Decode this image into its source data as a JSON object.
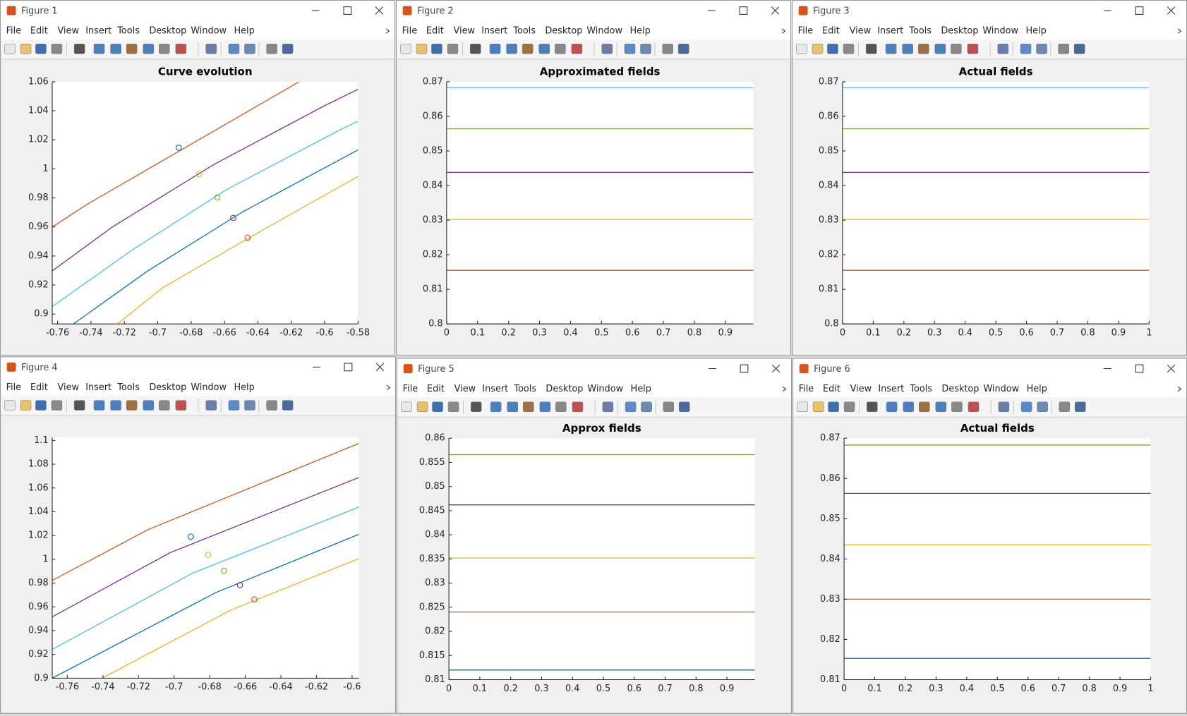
{
  "windows": [
    {
      "title": "Figure 1"
    },
    {
      "title": "Figure 2"
    },
    {
      "title": "Figure 3"
    },
    {
      "title": "Figure 4"
    },
    {
      "title": "Figure 5"
    },
    {
      "title": "Figure 6"
    }
  ],
  "menu": [
    "File",
    "Edit",
    "View",
    "Insert",
    "Tools",
    "Desktop",
    "Window",
    "Help"
  ],
  "chart_data": [
    {
      "type": "line",
      "title": "Curve evolution",
      "xlim": [
        -0.7632,
        -0.58
      ],
      "ylim": [
        0.8932,
        1.06
      ],
      "xticks": [
        -0.76,
        -0.74,
        -0.72,
        -0.7,
        -0.68,
        -0.66,
        -0.64,
        -0.62,
        -0.6,
        -0.58
      ],
      "yticks": [
        0.9,
        0.92,
        0.94,
        0.96,
        0.98,
        1,
        1.02,
        1.04,
        1.06
      ],
      "series": [
        {
          "color": "#D95319",
          "x": [
            -0.7632,
            -0.7423,
            -0.6153
          ],
          "values": [
            0.9599,
            0.9756,
            1.06
          ]
        },
        {
          "color": "#7E2F8E",
          "x": [
            -0.7632,
            -0.7273,
            -0.6661,
            -0.6004,
            -0.58
          ],
          "values": [
            0.9297,
            0.9599,
            1.0032,
            1.0433,
            1.0548
          ]
        },
        {
          "color": "#4DBEEE",
          "x": [
            -0.7632,
            -0.7151,
            -0.6584,
            -0.5913,
            -0.58
          ],
          "values": [
            0.9052,
            0.9443,
            0.986,
            1.0266,
            1.0329
          ]
        },
        {
          "color": "#0072BD",
          "x": [
            -0.7505,
            -0.706,
            -0.6493,
            -0.58
          ],
          "values": [
            0.8932,
            0.9297,
            0.9703,
            1.0131
          ]
        },
        {
          "color": "#EDB120",
          "x": [
            -0.7242,
            -0.697,
            -0.638,
            -0.58
          ],
          "values": [
            0.8932,
            0.9182,
            0.9573,
            0.9948
          ]
        }
      ],
      "points": {
        "x": [
          -0.6874,
          -0.6752,
          -0.6643,
          -0.6548,
          -0.6462
        ],
        "values": [
          1.0146,
          0.9964,
          0.9803,
          0.9662,
          0.9526
        ],
        "colors": [
          "#0072BD",
          "#EDB120",
          "#77AC30",
          "#7E2F8E",
          "#D95319"
        ]
      }
    },
    {
      "type": "line",
      "title": "Approximated fields",
      "xlim": [
        0,
        0.99
      ],
      "ylim": [
        0.8,
        0.87
      ],
      "xticks": [
        0,
        0.1,
        0.2,
        0.3,
        0.4,
        0.5,
        0.6,
        0.7,
        0.8,
        0.9
      ],
      "yticks": [
        0.8,
        0.81,
        0.82,
        0.83,
        0.84,
        0.85,
        0.86,
        0.87
      ],
      "series": [
        {
          "color": "#4DBEEE",
          "x": [
            0,
            0.99
          ],
          "values": [
            0.8683,
            0.8683
          ]
        },
        {
          "color": "#77AC30",
          "x": [
            0,
            0.99
          ],
          "values": [
            0.8564,
            0.8564
          ]
        },
        {
          "color": "#7E2F8E",
          "x": [
            0,
            0.99
          ],
          "values": [
            0.8438,
            0.8438
          ]
        },
        {
          "color": "#EDB120",
          "x": [
            0,
            0.99
          ],
          "values": [
            0.8302,
            0.8302
          ]
        },
        {
          "color": "#D95319",
          "x": [
            0,
            0.99
          ],
          "values": [
            0.8155,
            0.8155
          ]
        },
        {
          "color": "#0072BD",
          "x": [
            0,
            0.99
          ],
          "values": [
            0.8,
            0.8
          ]
        }
      ]
    },
    {
      "type": "line",
      "title": "Actual fields",
      "xlim": [
        0,
        1
      ],
      "ylim": [
        0.8,
        0.87
      ],
      "xticks": [
        0,
        0.1,
        0.2,
        0.3,
        0.4,
        0.5,
        0.6,
        0.7,
        0.8,
        0.9,
        1
      ],
      "yticks": [
        0.8,
        0.81,
        0.82,
        0.83,
        0.84,
        0.85,
        0.86,
        0.87
      ],
      "series": [
        {
          "color": "#4DBEEE",
          "x": [
            0,
            1
          ],
          "values": [
            0.8683,
            0.8683
          ]
        },
        {
          "color": "#77AC30",
          "x": [
            0,
            1
          ],
          "values": [
            0.8564,
            0.8564
          ]
        },
        {
          "color": "#7E2F8E",
          "x": [
            0,
            1
          ],
          "values": [
            0.8438,
            0.8438
          ]
        },
        {
          "color": "#EDB120",
          "x": [
            0,
            1
          ],
          "values": [
            0.8302,
            0.8302
          ]
        },
        {
          "color": "#D95319",
          "x": [
            0,
            1
          ],
          "values": [
            0.8155,
            0.8155
          ]
        },
        {
          "color": "#0072BD",
          "x": [
            0,
            1
          ],
          "values": [
            0.8,
            0.8
          ]
        }
      ]
    },
    {
      "type": "line",
      "xlim": [
        -0.7685,
        -0.5962
      ],
      "ylim": [
        0.9,
        1.1025
      ],
      "xticks": [
        -0.76,
        -0.74,
        -0.72,
        -0.7,
        -0.68,
        -0.66,
        -0.64,
        -0.62,
        -0.6
      ],
      "yticks": [
        0.9,
        0.92,
        0.94,
        0.96,
        0.98,
        1,
        1.02,
        1.04,
        1.06,
        1.08,
        1.1
      ],
      "series": [
        {
          "color": "#D95319",
          "x": [
            -0.7685,
            -0.7149,
            -0.5962
          ],
          "values": [
            0.9822,
            1.0248,
            1.0975
          ]
        },
        {
          "color": "#7E2F8E",
          "x": [
            -0.7685,
            -0.7021,
            -0.5962
          ],
          "values": [
            0.9516,
            1.0057,
            1.0688
          ]
        },
        {
          "color": "#4DBEEE",
          "x": [
            -0.7685,
            -0.6894,
            -0.5962
          ],
          "values": [
            0.9242,
            0.9885,
            1.0439
          ]
        },
        {
          "color": "#0072BD",
          "x": [
            -0.7685,
            -0.6766,
            -0.5962
          ],
          "values": [
            0.9,
            0.972,
            1.021
          ]
        },
        {
          "color": "#EDB120",
          "x": [
            -0.7404,
            -0.6681,
            -0.5962
          ],
          "values": [
            0.9,
            0.9573,
            1.0006
          ]
        }
      ],
      "points": {
        "x": [
          -0.6906,
          -0.6809,
          -0.6719,
          -0.663,
          -0.6549
        ],
        "values": [
          1.0191,
          1.0038,
          0.9904,
          0.9783,
          0.9662
        ],
        "colors": [
          "#0072BD",
          "#EDB120",
          "#77AC30",
          "#7E2F8E",
          "#D95319"
        ]
      }
    },
    {
      "type": "line",
      "title": "Approx fields",
      "xlim": [
        0,
        0.99
      ],
      "ylim": [
        0.81,
        0.86
      ],
      "xticks": [
        0,
        0.1,
        0.2,
        0.3,
        0.4,
        0.5,
        0.6,
        0.7,
        0.8,
        0.9
      ],
      "yticks": [
        0.81,
        0.815,
        0.82,
        0.825,
        0.83,
        0.835,
        0.84,
        0.845,
        0.85,
        0.855,
        0.86
      ],
      "series": [
        {
          "color": "#77AC30",
          "x": [
            0,
            0.99
          ],
          "values": [
            0.8566,
            0.8566
          ]
        },
        {
          "color": "#7E2F8E",
          "x": [
            0,
            0.99
          ],
          "values": [
            0.8462,
            0.8462
          ]
        },
        {
          "color": "#EDB120",
          "x": [
            0,
            0.99
          ],
          "values": [
            0.8352,
            0.8352
          ]
        },
        {
          "color": "#D95319",
          "x": [
            0,
            0.99
          ],
          "values": [
            0.824,
            0.824
          ]
        },
        {
          "color": "#0072BD",
          "x": [
            0,
            0.99
          ],
          "values": [
            0.812,
            0.812
          ]
        }
      ]
    },
    {
      "type": "line",
      "title": "Actual fields",
      "xlim": [
        0,
        1
      ],
      "ylim": [
        0.81,
        0.87
      ],
      "xticks": [
        0,
        0.1,
        0.2,
        0.3,
        0.4,
        0.5,
        0.6,
        0.7,
        0.8,
        0.9,
        1
      ],
      "yticks": [
        0.81,
        0.82,
        0.83,
        0.84,
        0.85,
        0.86,
        0.87
      ],
      "series": [
        {
          "color": "#77AC30",
          "x": [
            0,
            1
          ],
          "values": [
            0.8683,
            0.8683
          ]
        },
        {
          "color": "#7E2F8E",
          "x": [
            0,
            1
          ],
          "values": [
            0.8563,
            0.8563
          ]
        },
        {
          "color": "#EDB120",
          "x": [
            0,
            1
          ],
          "values": [
            0.8435,
            0.8435
          ]
        },
        {
          "color": "#D95319",
          "x": [
            0,
            1
          ],
          "values": [
            0.83,
            0.83
          ]
        },
        {
          "color": "#0072BD",
          "x": [
            0,
            1
          ],
          "values": [
            0.8153,
            0.8153
          ]
        }
      ]
    }
  ]
}
